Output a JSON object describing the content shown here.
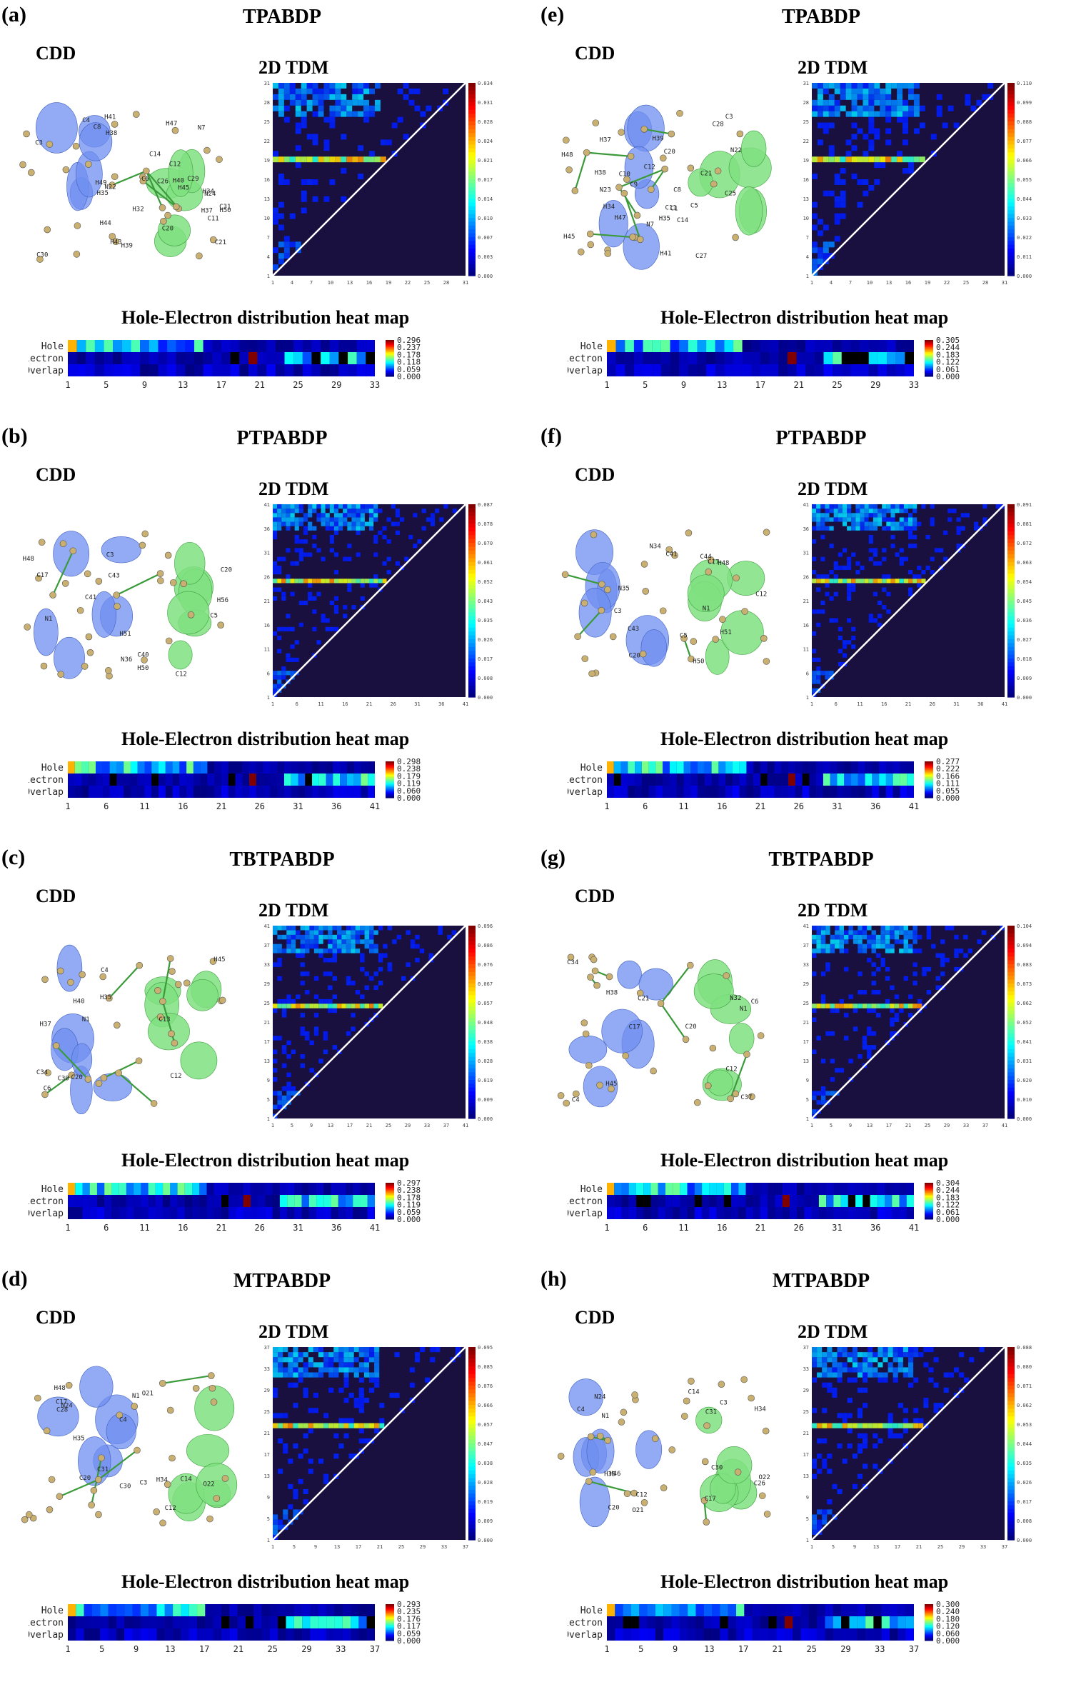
{
  "panels": [
    {
      "id": "a",
      "label": "(a)",
      "title": "TPABDP",
      "cdd": "CDD",
      "tdm_title": "2D TDM",
      "heatmap_title": "Hole-Electron distribution heat map",
      "atoms": [
        "H41",
        "H40",
        "C12",
        "C11",
        "C14",
        "C8",
        "N7",
        "C3",
        "C4",
        "C6",
        "H35",
        "H34",
        "H38",
        "H37",
        "H39",
        "C26",
        "C21",
        "N22",
        "C20",
        "N24",
        "C31",
        "C29",
        "C30",
        "H32",
        "H44",
        "H45",
        "H43",
        "H47",
        "H49",
        "H50"
      ],
      "tdm_ticks": [
        "1",
        "4",
        "7",
        "10",
        "13",
        "16",
        "19",
        "22",
        "25",
        "28",
        "31"
      ],
      "tdm_scale": [
        "0.0349",
        "0.0314",
        "0.0280",
        "0.0245",
        "0.0210",
        "0.0175",
        "0.0140",
        "0.0105",
        "0.0070",
        "0.0035",
        "0.0000"
      ],
      "heat_scale": [
        "0.296",
        "0.237",
        "0.178",
        "0.118",
        "0.059",
        "0.000"
      ],
      "heat_ticks": [
        "1",
        "5",
        "9",
        "13",
        "17",
        "21",
        "25",
        "29",
        "33"
      ],
      "atoms_n": 34
    },
    {
      "id": "e",
      "label": "(e)",
      "title": "TPABDP",
      "cdd": "CDD",
      "tdm_title": "2D TDM",
      "heatmap_title": "Hole-Electron distribution heat map",
      "atoms": [
        "H41",
        "C12",
        "C14",
        "C11",
        "C10",
        "C8",
        "N7",
        "C3",
        "C5",
        "C1",
        "C9",
        "H38",
        "H34",
        "H37",
        "H39",
        "C28",
        "C21",
        "N22",
        "C20",
        "N23",
        "C27",
        "C25",
        "H45",
        "H47",
        "H48",
        "H35"
      ],
      "tdm_ticks": [
        "1",
        "4",
        "7",
        "10",
        "13",
        "16",
        "19",
        "22",
        "25",
        "28",
        "31"
      ],
      "tdm_scale": [
        "0.1109",
        "0.0998",
        "0.0887",
        "0.0776",
        "0.0666",
        "0.0555",
        "0.0444",
        "0.0333",
        "0.0222",
        "0.0111",
        "0.0000"
      ],
      "heat_scale": [
        "0.305",
        "0.244",
        "0.183",
        "0.122",
        "0.061",
        "0.000"
      ],
      "heat_ticks": [
        "1",
        "5",
        "9",
        "13",
        "17",
        "21",
        "25",
        "29",
        "33"
      ],
      "atoms_n": 34
    },
    {
      "id": "b",
      "label": "(b)",
      "title": "PTPABDP",
      "cdd": "CDD",
      "tdm_title": "2D TDM",
      "heatmap_title": "Hole-Electron distribution heat map",
      "atoms": [
        "H50",
        "C17",
        "C3",
        "N1",
        "C5",
        "C12",
        "H56",
        "C40",
        "C20",
        "N36",
        "C41",
        "C43",
        "H48",
        "H51"
      ],
      "tdm_ticks": [
        "1",
        "6",
        "11",
        "16",
        "21",
        "26",
        "31",
        "36",
        "41"
      ],
      "tdm_scale": [
        "0.0876",
        "0.0788",
        "0.0701",
        "0.0613",
        "0.0526",
        "0.0438",
        "0.0350",
        "0.0263",
        "0.0175",
        "0.0088",
        "0.0000"
      ],
      "heat_scale": [
        "0.298",
        "0.238",
        "0.179",
        "0.119",
        "0.060",
        "0.000"
      ],
      "heat_ticks": [
        "1",
        "6",
        "11",
        "16",
        "21",
        "26",
        "31",
        "36",
        "41"
      ],
      "atoms_n": 44
    },
    {
      "id": "f",
      "label": "(f)",
      "title": "PTPABDP",
      "cdd": "CDD",
      "tdm_title": "2D TDM",
      "heatmap_title": "Hole-Electron distribution heat map",
      "atoms": [
        "H50",
        "C17",
        "C3",
        "N1",
        "C5",
        "C12",
        "C41",
        "C43",
        "C20",
        "N34",
        "N35",
        "C44",
        "H51",
        "H48"
      ],
      "tdm_ticks": [
        "1",
        "6",
        "11",
        "16",
        "21",
        "26",
        "31",
        "36",
        "41"
      ],
      "tdm_scale": [
        "0.0912",
        "0.0819",
        "0.0728",
        "0.0637",
        "0.0546",
        "0.0455",
        "0.0364",
        "0.0273",
        "0.0182",
        "0.0091",
        "0.0000"
      ],
      "heat_scale": [
        "0.277",
        "0.222",
        "0.166",
        "0.111",
        "0.055",
        "0.000"
      ],
      "heat_ticks": [
        "1",
        "6",
        "11",
        "16",
        "21",
        "26",
        "31",
        "36",
        "41"
      ],
      "atoms_n": 44
    },
    {
      "id": "c",
      "label": "(c)",
      "title": "TBTPABDP",
      "cdd": "CDD",
      "tdm_title": "2D TDM",
      "heatmap_title": "Hole-Electron distribution heat map",
      "atoms": [
        "C12",
        "C4",
        "C6",
        "N1",
        "C20",
        "C30",
        "C34",
        "H37",
        "C13",
        "H35",
        "H40",
        "H45"
      ],
      "tdm_ticks": [
        "1",
        "5",
        "9",
        "13",
        "17",
        "21",
        "25",
        "29",
        "33",
        "37",
        "41"
      ],
      "tdm_scale": [
        "0.0961",
        "0.0865",
        "0.0769",
        "0.0673",
        "0.0577",
        "0.0481",
        "0.0384",
        "0.0288",
        "0.0192",
        "0.0096",
        "0.0000"
      ],
      "heat_scale": [
        "0.297",
        "0.238",
        "0.178",
        "0.119",
        "0.059",
        "0.000"
      ],
      "heat_ticks": [
        "1",
        "6",
        "11",
        "16",
        "21",
        "26",
        "31",
        "36",
        "41"
      ],
      "atoms_n": 42
    },
    {
      "id": "g",
      "label": "(g)",
      "title": "TBTPABDP",
      "cdd": "CDD",
      "tdm_title": "2D TDM",
      "heatmap_title": "Hole-Electron distribution heat map",
      "atoms": [
        "C12",
        "C4",
        "C6",
        "N1",
        "C37",
        "C21",
        "C20",
        "N32",
        "C34",
        "C17",
        "H38",
        "H45"
      ],
      "tdm_ticks": [
        "1",
        "5",
        "9",
        "13",
        "17",
        "21",
        "25",
        "29",
        "33",
        "37",
        "41"
      ],
      "tdm_scale": [
        "0.1047",
        "0.0942",
        "0.0838",
        "0.0733",
        "0.0628",
        "0.0524",
        "0.0419",
        "0.0314",
        "0.0209",
        "0.0105",
        "0.0000"
      ],
      "heat_scale": [
        "0.304",
        "0.244",
        "0.183",
        "0.122",
        "0.061",
        "0.000"
      ],
      "heat_ticks": [
        "1",
        "6",
        "11",
        "16",
        "21",
        "26",
        "31",
        "36",
        "41"
      ],
      "atoms_n": 42
    },
    {
      "id": "d",
      "label": "(d)",
      "title": "MTPABDP",
      "cdd": "CDD",
      "tdm_title": "2D TDM",
      "heatmap_title": "Hole-Electron distribution heat map",
      "atoms": [
        "O22",
        "C12",
        "C14",
        "C4",
        "N1",
        "C3",
        "C17",
        "O21",
        "C31",
        "C20",
        "N24",
        "C30",
        "C28",
        "H34",
        "H35",
        "H48"
      ],
      "tdm_ticks": [
        "1",
        "5",
        "9",
        "13",
        "17",
        "21",
        "25",
        "29",
        "33",
        "37"
      ],
      "tdm_scale": [
        "0.0954",
        "0.0859",
        "0.0763",
        "0.0668",
        "0.0572",
        "0.0477",
        "0.0382",
        "0.0286",
        "0.0191",
        "0.0095",
        "0.0000"
      ],
      "heat_scale": [
        "0.293",
        "0.235",
        "0.176",
        "0.117",
        "0.059",
        "0.000"
      ],
      "heat_ticks": [
        "1",
        "5",
        "9",
        "13",
        "17",
        "21",
        "25",
        "29",
        "33",
        "37"
      ],
      "atoms_n": 38
    },
    {
      "id": "h",
      "label": "(h)",
      "title": "MTPABDP",
      "cdd": "CDD",
      "tdm_title": "2D TDM",
      "heatmap_title": "Hole-Electron distribution heat map",
      "atoms": [
        "O22",
        "C12",
        "C14",
        "C4",
        "N1",
        "C3",
        "C17",
        "O21",
        "C31",
        "C20",
        "N24",
        "C30",
        "C26",
        "H34",
        "H35",
        "H46"
      ],
      "tdm_ticks": [
        "1",
        "5",
        "9",
        "13",
        "17",
        "21",
        "25",
        "29",
        "33",
        "37"
      ],
      "tdm_scale": [
        "0.0889",
        "0.0800",
        "0.0711",
        "0.0622",
        "0.0533",
        "0.0445",
        "0.0356",
        "0.0267",
        "0.0178",
        "0.0089",
        "0.0000"
      ],
      "heat_scale": [
        "0.300",
        "0.240",
        "0.180",
        "0.120",
        "0.060",
        "0.000"
      ],
      "heat_ticks": [
        "1",
        "5",
        "9",
        "13",
        "17",
        "21",
        "25",
        "29",
        "33",
        "37"
      ],
      "atoms_n": 38
    }
  ],
  "heat_rows": [
    "Hole",
    "Electron",
    "Overlap"
  ],
  "colors": {
    "bg_dark": "#1a1040",
    "hole_iso": "#6f8ff0",
    "electron_iso": "#7fe07f",
    "bond": "#3a9a3a",
    "atom": "#c9b070"
  }
}
